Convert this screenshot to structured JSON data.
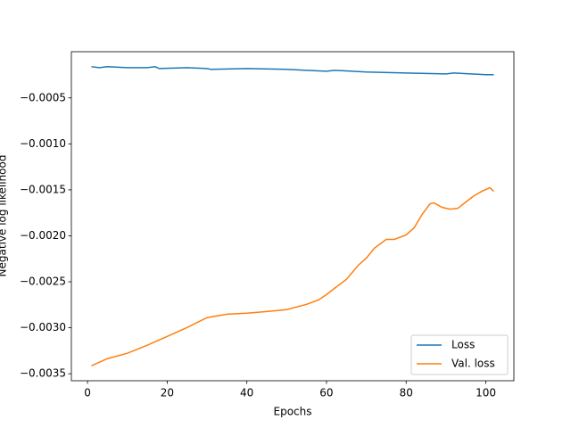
{
  "chart_data": {
    "type": "line",
    "xlabel": "Epochs",
    "ylabel": "Negative log likelihood",
    "xlim": [
      -4.05,
      107.05
    ],
    "ylim": [
      -0.003576,
      2e-06
    ],
    "xticks": [
      0,
      20,
      40,
      60,
      80,
      100
    ],
    "yticks": [
      {
        "value": -0.0035,
        "label": "−0.0035"
      },
      {
        "value": -0.003,
        "label": "−0.0030"
      },
      {
        "value": -0.0025,
        "label": "−0.0025"
      },
      {
        "value": -0.002,
        "label": "−0.0020"
      },
      {
        "value": -0.0015,
        "label": "−0.0015"
      },
      {
        "value": -0.001,
        "label": "−0.0010"
      },
      {
        "value": -0.0005,
        "label": "−0.0005"
      }
    ],
    "legend": "lower right",
    "series": [
      {
        "name": "Loss",
        "color": "#1f77b4",
        "x": [
          1,
          3,
          5,
          10,
          15,
          17,
          18,
          25,
          30,
          31,
          40,
          50,
          55,
          60,
          62,
          70,
          80,
          90,
          92,
          100,
          102
        ],
        "values": [
          -0.000161,
          -0.000171,
          -0.000161,
          -0.000171,
          -0.000171,
          -0.000161,
          -0.000181,
          -0.000171,
          -0.000181,
          -0.00019,
          -0.000181,
          -0.00019,
          -0.0002,
          -0.00021,
          -0.0002,
          -0.000219,
          -0.000229,
          -0.000239,
          -0.000229,
          -0.000248,
          -0.000248
        ]
      },
      {
        "name": "Val. loss",
        "color": "#ff7f0e",
        "x": [
          1,
          5,
          10,
          15,
          20,
          25,
          30,
          35,
          40,
          45,
          50,
          55,
          58,
          60,
          62,
          65,
          68,
          70,
          72,
          75,
          77,
          80,
          82,
          84,
          86,
          87,
          89,
          91,
          93,
          95,
          97,
          99,
          101,
          102
        ],
        "values": [
          -0.003413,
          -0.003336,
          -0.003277,
          -0.00319,
          -0.003094,
          -0.002997,
          -0.00289,
          -0.002852,
          -0.002842,
          -0.002823,
          -0.002803,
          -0.002745,
          -0.002697,
          -0.002639,
          -0.002571,
          -0.002474,
          -0.002319,
          -0.002242,
          -0.002135,
          -0.002039,
          -0.002039,
          -0.00199,
          -0.001913,
          -0.001768,
          -0.001652,
          -0.001642,
          -0.00169,
          -0.00171,
          -0.0017,
          -0.001632,
          -0.001565,
          -0.001516,
          -0.001477,
          -0.001516
        ]
      }
    ]
  }
}
